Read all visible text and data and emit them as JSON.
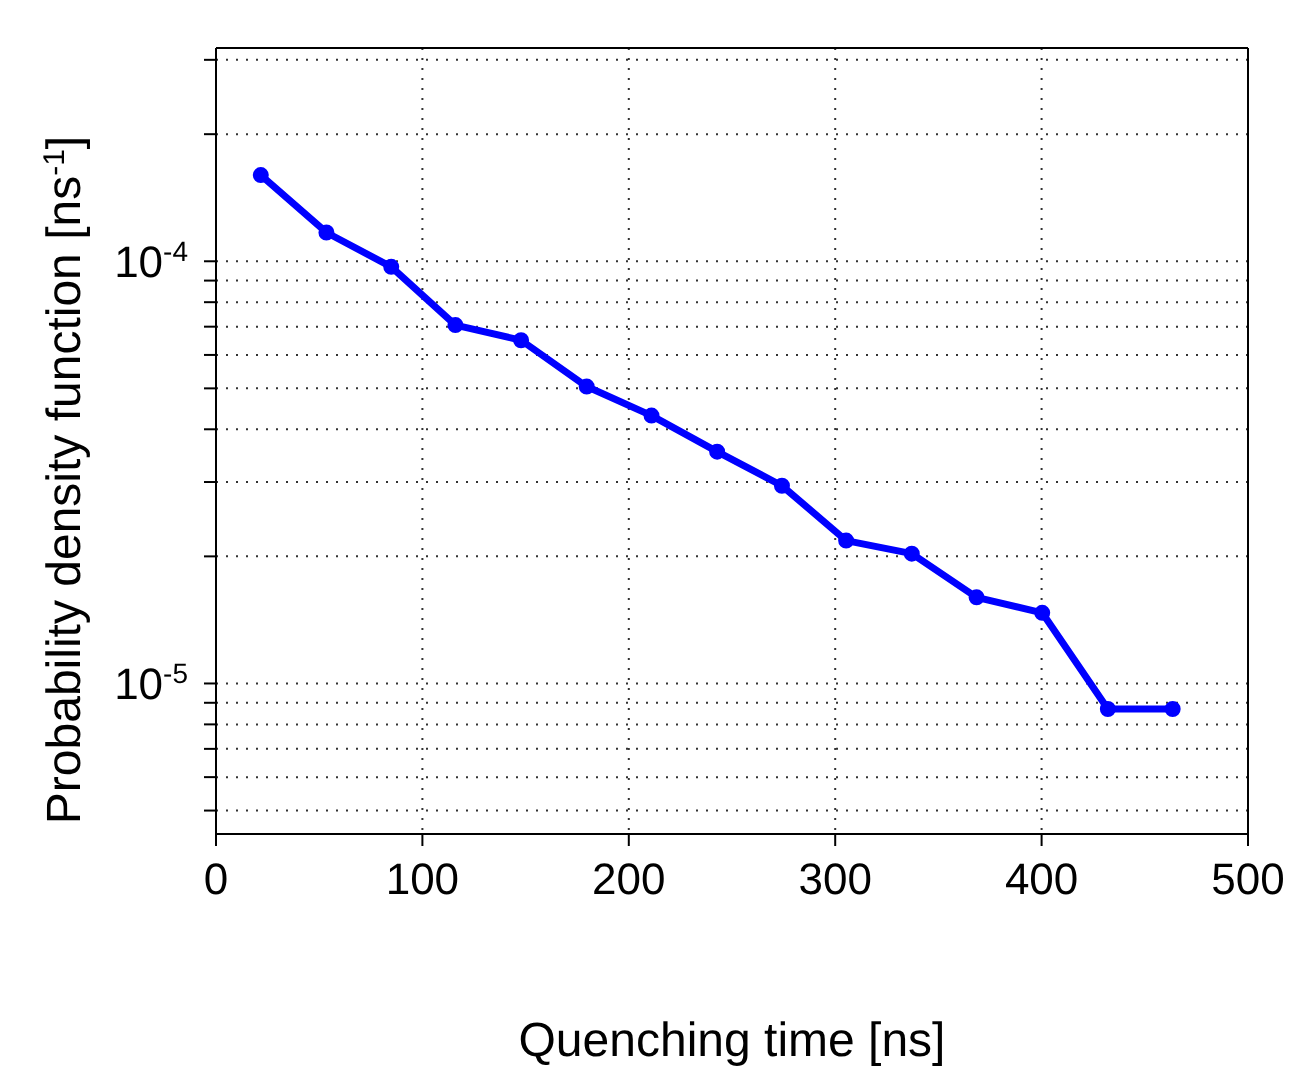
{
  "chart_data": {
    "type": "line",
    "xlabel": "Quenching time [ns]",
    "ylabel": "Probability density function [ns$^{-1}$]",
    "x": [
      21.7,
      53.5,
      84.9,
      116,
      147.8,
      179.6,
      211,
      242.8,
      274.2,
      305.3,
      337.1,
      368.5,
      400.3,
      432.1,
      463.5
    ],
    "series": [
      {
        "color": "#0000ff",
        "values": [
          0.00016,
          0.000117,
          9.7e-05,
          7.06e-05,
          6.5e-05,
          5.05e-05,
          4.31e-05,
          3.54e-05,
          2.94e-05,
          2.18e-05,
          2.03e-05,
          1.6e-05,
          1.47e-05,
          8.7e-06,
          8.7e-06
        ]
      }
    ],
    "xlim": [
      0,
      500
    ],
    "xticks": [
      0,
      100,
      200,
      300,
      400,
      500
    ],
    "ylim": [
      4.4e-06,
      0.00032
    ],
    "log": "y",
    "yticks": [
      {
        "value": 5e-06,
        "label": null
      },
      {
        "value": 6e-06,
        "label": null
      },
      {
        "value": 7e-06,
        "label": null
      },
      {
        "value": 8e-06,
        "label": null
      },
      {
        "value": 9e-06,
        "label": null
      },
      {
        "value": 1e-05,
        "label": "10$^{-5}$"
      },
      {
        "value": 2e-05,
        "label": null
      },
      {
        "value": 3e-05,
        "label": null
      },
      {
        "value": 4e-05,
        "label": null
      },
      {
        "value": 5e-05,
        "label": null
      },
      {
        "value": 6e-05,
        "label": null
      },
      {
        "value": 7e-05,
        "label": null
      },
      {
        "value": 8e-05,
        "label": null
      },
      {
        "value": 9e-05,
        "label": null
      },
      {
        "value": 0.0001,
        "label": "10$^{-4}$"
      },
      {
        "value": 0.0002,
        "label": null
      },
      {
        "value": 0.0003,
        "label": null
      }
    ],
    "grid": true,
    "marker": "circle",
    "line_style": "solid"
  }
}
